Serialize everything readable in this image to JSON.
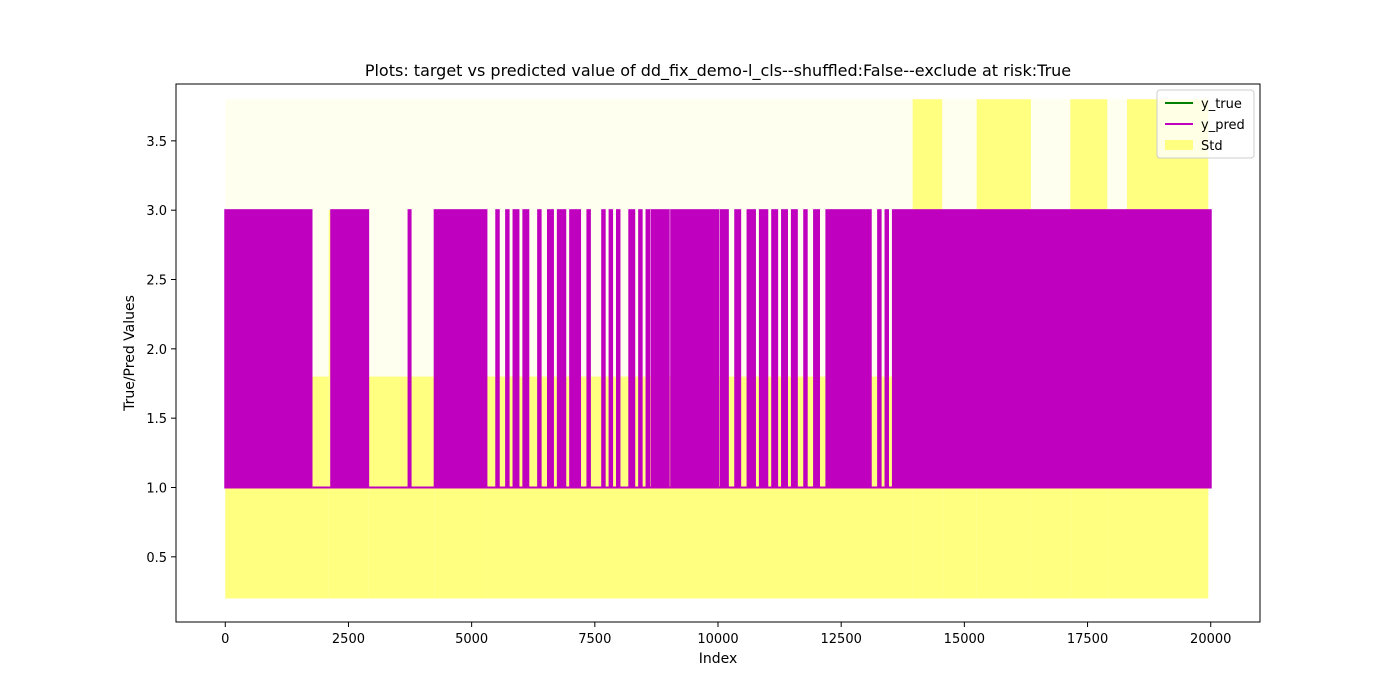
{
  "chart_data": {
    "type": "line",
    "title": "Plots: target vs predicted value of dd_fix_demo-l_cls--shuffled:False--exclude at risk:True",
    "xlabel": "Index",
    "ylabel": "True/Pred Values",
    "xlim": [
      -1000,
      21000
    ],
    "ylim": [
      0.03,
      3.91
    ],
    "x_ticks": [
      0,
      2500,
      5000,
      7500,
      10000,
      12500,
      15000,
      17500,
      20000
    ],
    "y_ticks": [
      0.5,
      1.0,
      1.5,
      2.0,
      2.5,
      3.0,
      3.5
    ],
    "x_tick_labels": [
      "0",
      "2500",
      "5000",
      "7500",
      "10000",
      "12500",
      "15000",
      "17500",
      "20000"
    ],
    "y_tick_labels": [
      "0.5",
      "1.0",
      "1.5",
      "2.0",
      "2.5",
      "3.0",
      "3.5"
    ],
    "grid": false,
    "legend_position": "upper right",
    "n_points": 20000,
    "series": [
      {
        "name": "y_true",
        "color": "#008000",
        "kind": "line",
        "min": 1.0,
        "max": 3.0
      },
      {
        "name": "y_pred",
        "color": "#bf00bf",
        "kind": "line",
        "min": 1.0,
        "max": 3.0,
        "oscillating_segments": [
          [
            0,
            1750
          ],
          [
            2150,
            2900
          ],
          [
            3720,
            3740
          ],
          [
            4250,
            5300
          ],
          [
            5500,
            5550
          ],
          [
            5700,
            5750
          ],
          [
            5850,
            5950
          ],
          [
            6050,
            6150
          ],
          [
            6350,
            6400
          ],
          [
            6550,
            6650
          ],
          [
            6750,
            6900
          ],
          [
            7000,
            7200
          ],
          [
            7350,
            7400
          ],
          [
            7650,
            7700
          ],
          [
            7800,
            7850
          ],
          [
            7950,
            8000
          ],
          [
            8200,
            8300
          ],
          [
            8400,
            8450
          ],
          [
            8550,
            8600
          ],
          [
            8650,
            9000
          ],
          [
            9050,
            10000
          ],
          [
            10050,
            10200
          ],
          [
            10350,
            10450
          ],
          [
            10600,
            10750
          ],
          [
            10850,
            11000
          ],
          [
            11100,
            11200
          ],
          [
            11300,
            11400
          ],
          [
            11500,
            11600
          ],
          [
            11750,
            11800
          ],
          [
            11950,
            12050
          ],
          [
            12200,
            13100
          ],
          [
            13250,
            13300
          ],
          [
            13400,
            13450
          ],
          [
            13550,
            20000
          ]
        ],
        "flat_value": 1.0
      },
      {
        "name": "Std",
        "color": "#ffff80",
        "kind": "band",
        "bands": [
          {
            "x": [
              0,
              1750
            ],
            "low": 0.2,
            "high": 3.0
          },
          {
            "x": [
              1750,
              2100
            ],
            "low": 0.2,
            "high": 1.8
          },
          {
            "x": [
              2100,
              2900
            ],
            "low": 0.2,
            "high": 3.0
          },
          {
            "x": [
              2900,
              4250
            ],
            "low": 0.2,
            "high": 1.8
          },
          {
            "x": [
              4250,
              5300
            ],
            "low": 0.2,
            "high": 3.0
          },
          {
            "x": [
              5300,
              13950
            ],
            "low": 0.2,
            "high": 1.8
          },
          {
            "x": [
              13950,
              14550
            ],
            "low": 0.2,
            "high": 3.8
          },
          {
            "x": [
              14550,
              15250
            ],
            "low": 0.2,
            "high": 3.0
          },
          {
            "x": [
              15250,
              16350
            ],
            "low": 0.2,
            "high": 3.8
          },
          {
            "x": [
              16350,
              17150
            ],
            "low": 0.2,
            "high": 3.0
          },
          {
            "x": [
              17150,
              17900
            ],
            "low": 0.2,
            "high": 3.8
          },
          {
            "x": [
              17900,
              18300
            ],
            "low": 0.2,
            "high": 3.0
          },
          {
            "x": [
              18300,
              19950
            ],
            "low": 0.2,
            "high": 3.8
          }
        ],
        "faint_band": {
          "x": [
            0,
            19950
          ],
          "low": 0.2,
          "high": 3.8
        }
      }
    ]
  },
  "legend": {
    "items": [
      {
        "label": "y_true",
        "color": "#008000",
        "kind": "line"
      },
      {
        "label": "y_pred",
        "color": "#bf00bf",
        "kind": "line"
      },
      {
        "label": "Std",
        "color": "#ffff80",
        "kind": "patch"
      }
    ]
  }
}
